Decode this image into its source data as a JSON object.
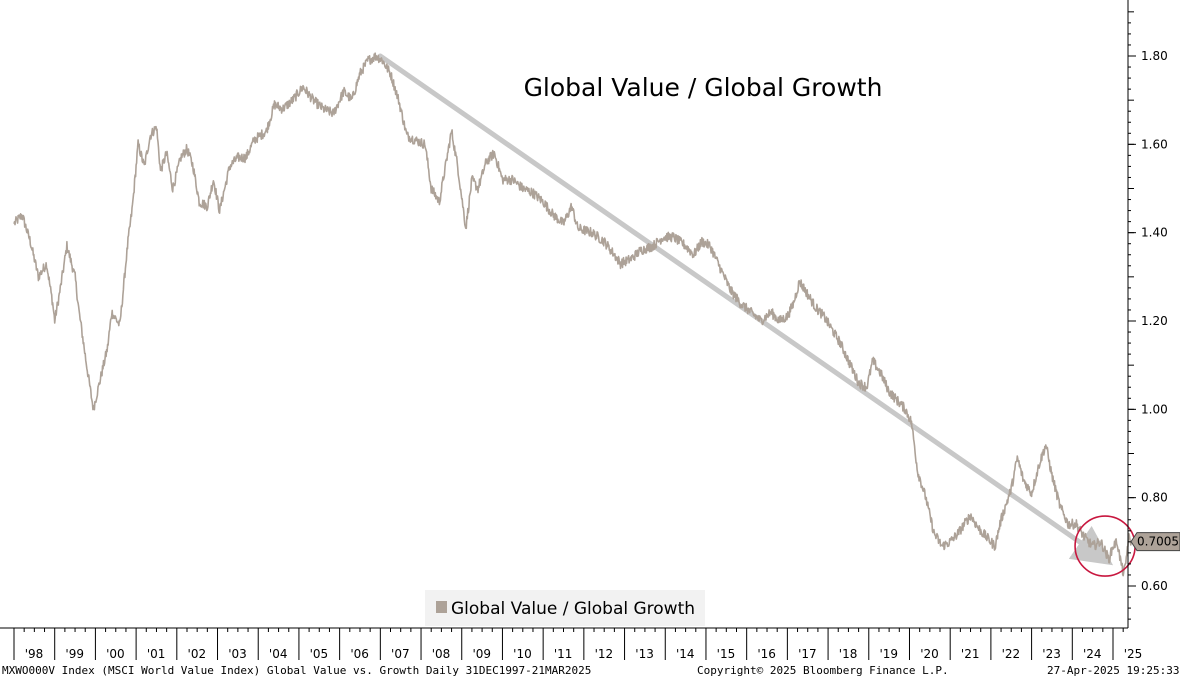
{
  "chart_data": {
    "type": "line",
    "title": "Global Value / Global Growth",
    "xlabel": "",
    "ylabel": "",
    "x_tick_labels": [
      "'98",
      "'99",
      "'00",
      "'01",
      "'02",
      "'03",
      "'04",
      "'05",
      "'06",
      "'07",
      "'08",
      "'09",
      "'10",
      "'11",
      "'12",
      "'13",
      "'14",
      "'15",
      "'16",
      "'17",
      "'18",
      "'19",
      "'20",
      "'21",
      "'22",
      "'23",
      "'24",
      "'25"
    ],
    "y_tick_labels": [
      "0.60",
      "0.80",
      "1.00",
      "1.20",
      "1.40",
      "1.60",
      "1.80"
    ],
    "ylim": [
      0.5,
      1.92
    ],
    "xlim": [
      1997.7,
      2025.5
    ],
    "y_axis_position": "right",
    "grid": false,
    "legend": {
      "position": "bottom-center",
      "entries": [
        "Global Value / Global Growth"
      ]
    },
    "last_value_label": "0.7005",
    "series": [
      {
        "name": "Global Value / Global Growth",
        "color": "#ada298",
        "points": [
          [
            1998.0,
            1.42
          ],
          [
            1998.2,
            1.44
          ],
          [
            1998.4,
            1.38
          ],
          [
            1998.6,
            1.3
          ],
          [
            1998.8,
            1.33
          ],
          [
            1998.95,
            1.24
          ],
          [
            1999.0,
            1.2
          ],
          [
            1999.15,
            1.28
          ],
          [
            1999.3,
            1.37
          ],
          [
            1999.5,
            1.3
          ],
          [
            1999.6,
            1.22
          ],
          [
            1999.8,
            1.09
          ],
          [
            1999.95,
            1.0
          ],
          [
            2000.1,
            1.06
          ],
          [
            2000.3,
            1.14
          ],
          [
            2000.4,
            1.22
          ],
          [
            2000.6,
            1.19
          ],
          [
            2000.8,
            1.38
          ],
          [
            2000.9,
            1.45
          ],
          [
            2001.05,
            1.6
          ],
          [
            2001.2,
            1.55
          ],
          [
            2001.35,
            1.62
          ],
          [
            2001.5,
            1.64
          ],
          [
            2001.6,
            1.54
          ],
          [
            2001.75,
            1.58
          ],
          [
            2001.9,
            1.5
          ],
          [
            2002.1,
            1.57
          ],
          [
            2002.25,
            1.59
          ],
          [
            2002.4,
            1.55
          ],
          [
            2002.55,
            1.47
          ],
          [
            2002.75,
            1.46
          ],
          [
            2002.9,
            1.52
          ],
          [
            2003.05,
            1.45
          ],
          [
            2003.3,
            1.55
          ],
          [
            2003.5,
            1.57
          ],
          [
            2003.7,
            1.57
          ],
          [
            2003.9,
            1.61
          ],
          [
            2004.2,
            1.63
          ],
          [
            2004.4,
            1.69
          ],
          [
            2004.6,
            1.68
          ],
          [
            2004.85,
            1.7
          ],
          [
            2005.1,
            1.73
          ],
          [
            2005.35,
            1.7
          ],
          [
            2005.6,
            1.68
          ],
          [
            2005.85,
            1.67
          ],
          [
            2006.1,
            1.72
          ],
          [
            2006.3,
            1.7
          ],
          [
            2006.5,
            1.76
          ],
          [
            2006.7,
            1.79
          ],
          [
            2006.9,
            1.8
          ],
          [
            2007.05,
            1.79
          ],
          [
            2007.25,
            1.76
          ],
          [
            2007.45,
            1.7
          ],
          [
            2007.65,
            1.62
          ],
          [
            2007.85,
            1.61
          ],
          [
            2008.1,
            1.6
          ],
          [
            2008.25,
            1.5
          ],
          [
            2008.45,
            1.47
          ],
          [
            2008.6,
            1.55
          ],
          [
            2008.75,
            1.63
          ],
          [
            2008.9,
            1.55
          ],
          [
            2009.1,
            1.41
          ],
          [
            2009.25,
            1.52
          ],
          [
            2009.4,
            1.5
          ],
          [
            2009.6,
            1.56
          ],
          [
            2009.8,
            1.58
          ],
          [
            2010.0,
            1.52
          ],
          [
            2010.25,
            1.52
          ],
          [
            2010.5,
            1.5
          ],
          [
            2010.75,
            1.49
          ],
          [
            2011.0,
            1.47
          ],
          [
            2011.25,
            1.44
          ],
          [
            2011.5,
            1.42
          ],
          [
            2011.7,
            1.46
          ],
          [
            2011.85,
            1.41
          ],
          [
            2012.2,
            1.4
          ],
          [
            2012.5,
            1.38
          ],
          [
            2012.75,
            1.35
          ],
          [
            2012.9,
            1.33
          ],
          [
            2013.15,
            1.34
          ],
          [
            2013.4,
            1.36
          ],
          [
            2013.7,
            1.37
          ],
          [
            2013.95,
            1.39
          ],
          [
            2014.2,
            1.39
          ],
          [
            2014.5,
            1.37
          ],
          [
            2014.7,
            1.35
          ],
          [
            2014.9,
            1.38
          ],
          [
            2015.1,
            1.37
          ],
          [
            2015.35,
            1.32
          ],
          [
            2015.6,
            1.27
          ],
          [
            2015.85,
            1.24
          ],
          [
            2016.1,
            1.22
          ],
          [
            2016.35,
            1.2
          ],
          [
            2016.6,
            1.22
          ],
          [
            2016.8,
            1.2
          ],
          [
            2017.0,
            1.21
          ],
          [
            2017.15,
            1.24
          ],
          [
            2017.3,
            1.29
          ],
          [
            2017.5,
            1.26
          ],
          [
            2017.7,
            1.23
          ],
          [
            2017.9,
            1.21
          ],
          [
            2018.1,
            1.18
          ],
          [
            2018.3,
            1.15
          ],
          [
            2018.55,
            1.1
          ],
          [
            2018.75,
            1.06
          ],
          [
            2018.95,
            1.05
          ],
          [
            2019.1,
            1.11
          ],
          [
            2019.3,
            1.08
          ],
          [
            2019.5,
            1.04
          ],
          [
            2019.7,
            1.02
          ],
          [
            2019.9,
            1.0
          ],
          [
            2020.05,
            0.97
          ],
          [
            2020.2,
            0.86
          ],
          [
            2020.4,
            0.8
          ],
          [
            2020.6,
            0.72
          ],
          [
            2020.8,
            0.69
          ],
          [
            2021.0,
            0.7
          ],
          [
            2021.2,
            0.72
          ],
          [
            2021.5,
            0.76
          ],
          [
            2021.7,
            0.73
          ],
          [
            2021.9,
            0.71
          ],
          [
            2022.1,
            0.69
          ],
          [
            2022.25,
            0.75
          ],
          [
            2022.5,
            0.82
          ],
          [
            2022.65,
            0.89
          ],
          [
            2022.8,
            0.84
          ],
          [
            2023.0,
            0.81
          ],
          [
            2023.2,
            0.88
          ],
          [
            2023.35,
            0.92
          ],
          [
            2023.5,
            0.85
          ],
          [
            2023.7,
            0.78
          ],
          [
            2023.9,
            0.74
          ],
          [
            2024.1,
            0.74
          ],
          [
            2024.3,
            0.71
          ],
          [
            2024.5,
            0.69
          ],
          [
            2024.7,
            0.7
          ],
          [
            2024.9,
            0.66
          ],
          [
            2025.0,
            0.69
          ],
          [
            2025.1,
            0.7
          ],
          [
            2025.18,
            0.66
          ],
          [
            2025.25,
            0.63
          ],
          [
            2025.3,
            0.64
          ],
          [
            2025.38,
            0.71
          ],
          [
            2025.45,
            0.7005
          ]
        ]
      }
    ],
    "annotations": [
      {
        "type": "trend-arrow",
        "color": "#c8c8c8",
        "from": [
          2007.0,
          1.8
        ],
        "to": [
          2024.8,
          0.66
        ]
      },
      {
        "type": "circle",
        "color": "#c8173f",
        "center": [
          2025.1,
          0.67
        ]
      }
    ]
  },
  "footer": {
    "left": "MXWO000V Index (MSCI World Value Index) Global Value vs. Growth  Daily 31DEC1997-21MAR2025",
    "center": "Copyright© 2025 Bloomberg Finance L.P.",
    "right": "27-Apr-2025 19:25:33"
  }
}
